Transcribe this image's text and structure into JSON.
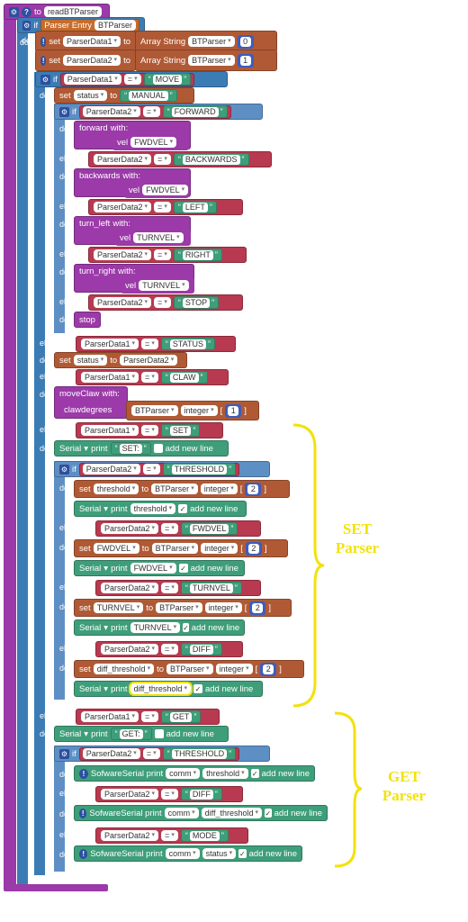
{
  "proc": {
    "to": "to",
    "name": "readBTParser",
    "do": "do"
  },
  "kw": {
    "if": "if",
    "do": "do",
    "else_if": "else if",
    "set": "set",
    "to": "to",
    "with": "with:",
    "print": "print",
    "add_new_line": "add new line",
    "serial": "Serial",
    "sws": "SofwareSerial print",
    "comm": "comm",
    "integer": "integer",
    "eq": "=",
    "parser_entry": "Parser Entry",
    "btparser": "BTParser",
    "array_string": "Array String",
    "index0": "0",
    "index1": "1",
    "index2": "2"
  },
  "vars": {
    "pd1": "ParserData1",
    "pd2": "ParserData2",
    "status": "status",
    "threshold": "threshold",
    "fwdvel": "FWDVEL",
    "turnvel": "TURNVEL",
    "diff_threshold": "diff_threshold"
  },
  "strs": {
    "move": "MOVE",
    "manual": "MANUAL",
    "forward": "FORWARD",
    "backwards": "BACKWARDS",
    "left": "LEFT",
    "right": "RIGHT",
    "stop": "STOP",
    "status": "STATUS",
    "claw": "CLAW",
    "set": "SET",
    "set_colon": "SET:",
    "threshold": "THRESHOLD",
    "fwdvel": "FWDVEL",
    "turnvel": "TURNVEL",
    "diff": "DIFF",
    "get": "GET",
    "get_colon": "GET:",
    "mode": "MODE"
  },
  "calls": {
    "forward": "forward",
    "backwards": "backwards",
    "turn_left": "turn_left",
    "turn_right": "turn_right",
    "stop": "stop",
    "moveClaw": "moveClaw",
    "vel": "vel",
    "clawdegrees": "clawdegrees"
  },
  "annotations": {
    "set": "SET\nParser",
    "get": "GET\nParser"
  },
  "colors": {
    "procedure": "#9b3aa8",
    "control": "#3c7cb5",
    "variable": "#b05a35",
    "logic": "#b83a50",
    "text": "#3f9e7a",
    "annotation": "#f2e20a"
  }
}
